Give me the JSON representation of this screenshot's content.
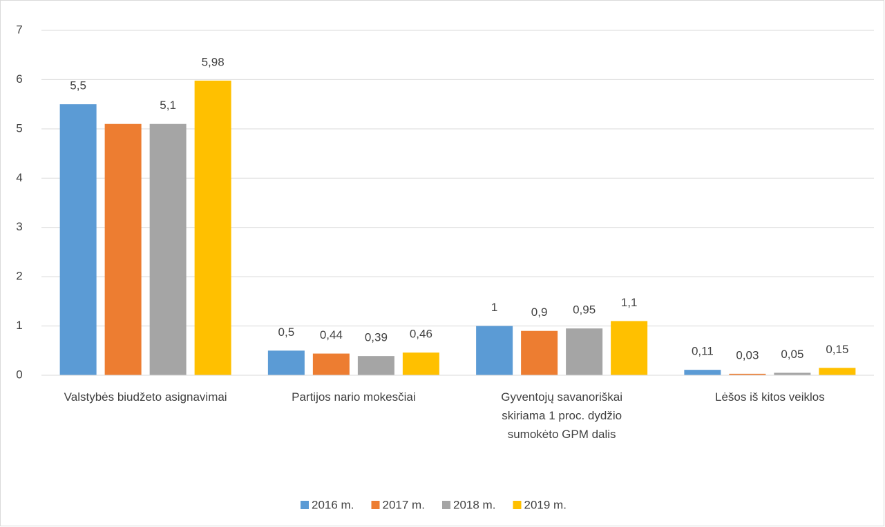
{
  "chart_data": {
    "type": "bar",
    "categories": [
      "Valstybės biudžeto asignavimai",
      "Partijos nario mokesčiai",
      "Gyventojų savanoriškai skiriama 1 proc. dydžio sumokėto GPM dalis",
      "Lėšos iš kitos veiklos"
    ],
    "series": [
      {
        "name": "2016 m.",
        "color": "#5b9bd5",
        "values": [
          5.5,
          0.5,
          1,
          0.11
        ],
        "value_labels": [
          "5,5",
          "0,5",
          "1",
          "0,11"
        ]
      },
      {
        "name": "2017 m.",
        "color": "#ed7d31",
        "values": [
          5.1,
          0.44,
          0.9,
          0.03
        ],
        "value_labels": [
          null,
          "0,44",
          "0,9",
          "0,03"
        ]
      },
      {
        "name": "2018 m.",
        "color": "#a5a5a5",
        "values": [
          5.1,
          0.39,
          0.95,
          0.05
        ],
        "value_labels": [
          "5,1",
          "0,39",
          "0,95",
          "0,05"
        ]
      },
      {
        "name": "2019 m.",
        "color": "#ffc000",
        "values": [
          5.98,
          0.46,
          1.1,
          0.15
        ],
        "value_labels": [
          "5,98",
          "0,46",
          "1,1",
          "0,15"
        ]
      }
    ],
    "ylim": [
      0,
      7
    ],
    "yticks": [
      0,
      1,
      2,
      3,
      4,
      5,
      6,
      7
    ],
    "grid": true,
    "legend": "bottom"
  }
}
